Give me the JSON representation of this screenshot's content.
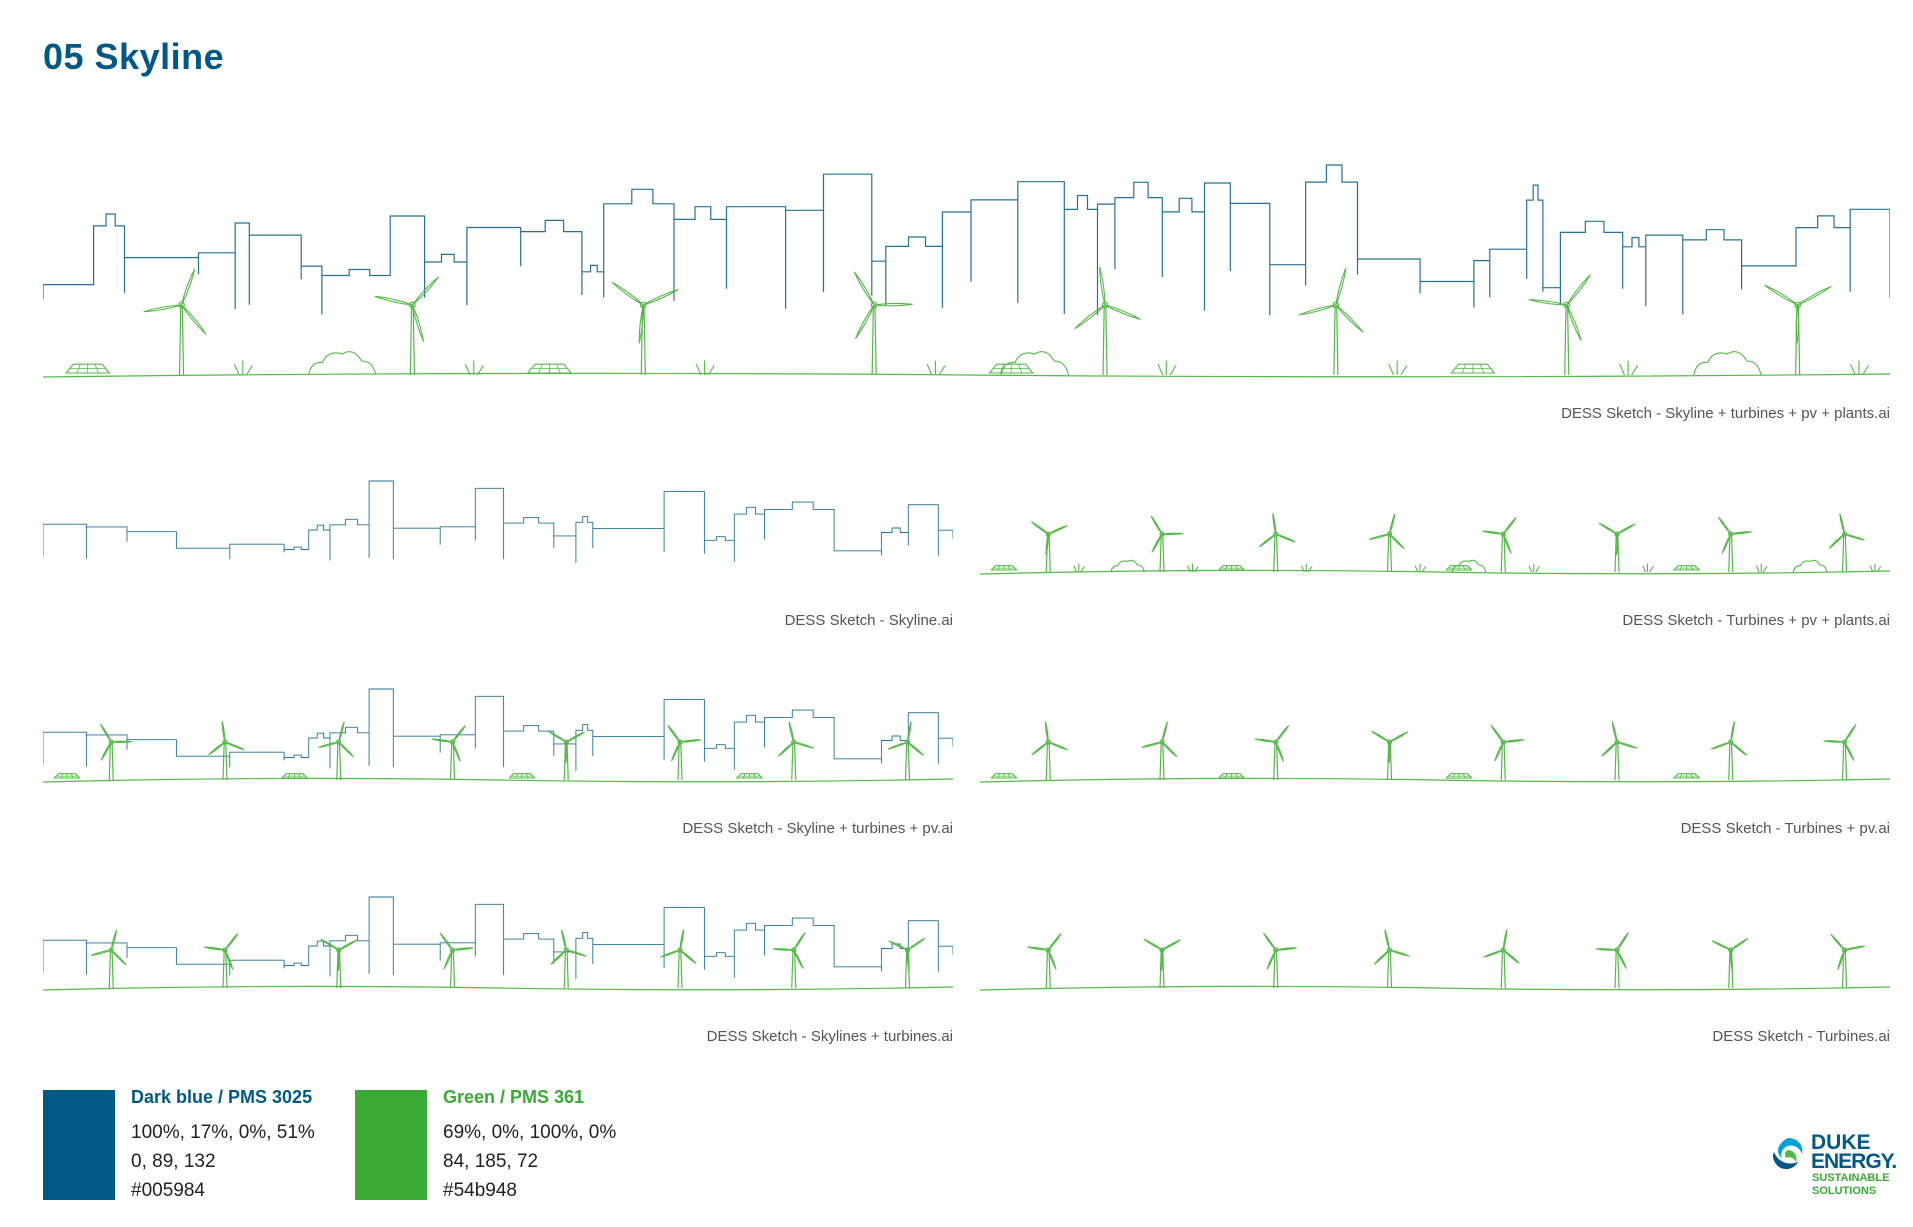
{
  "page_title": "05 Skyline",
  "colors": {
    "blue": "#005984",
    "green": "#54b948"
  },
  "sketches": [
    {
      "id": "main",
      "caption": "DESS Sketch - Skyline + turbines + pv + plants.ai",
      "skyline": true,
      "turbines": true,
      "pv": true,
      "plants": true
    },
    {
      "id": "skyline",
      "caption": "DESS Sketch - Skyline.ai",
      "skyline": true,
      "turbines": false,
      "pv": false,
      "plants": false
    },
    {
      "id": "turbines-pv-plants",
      "caption": "DESS Sketch - Turbines + pv + plants.ai",
      "skyline": false,
      "turbines": true,
      "pv": true,
      "plants": true
    },
    {
      "id": "skyline-turbines-pv",
      "caption": "DESS Sketch - Skyline + turbines + pv.ai",
      "skyline": true,
      "turbines": true,
      "pv": true,
      "plants": false
    },
    {
      "id": "turbines-pv",
      "caption": "DESS Sketch - Turbines + pv.ai",
      "skyline": false,
      "turbines": true,
      "pv": true,
      "plants": false
    },
    {
      "id": "skylines-turbines",
      "caption": "DESS Sketch - Skylines + turbines.ai",
      "skyline": true,
      "turbines": true,
      "pv": false,
      "plants": false
    },
    {
      "id": "turbines",
      "caption": "DESS Sketch - Turbines.ai",
      "skyline": false,
      "turbines": true,
      "pv": false,
      "plants": false
    }
  ],
  "swatches": [
    {
      "title": "Dark blue / PMS 3025",
      "cmyk": "100%, 17%, 0%, 51%",
      "rgb": "0, 89, 132",
      "hex": "#005984",
      "color": "#005984"
    },
    {
      "title": "Green / PMS 361",
      "cmyk": "69%, 0%, 100%, 0%",
      "rgb": "84, 185, 72",
      "hex": "#54b948",
      "color": "#54b948"
    }
  ],
  "logo": {
    "line1": "DUKE",
    "line2": "ENERGY.",
    "line3": "SUSTAINABLE",
    "line4": "SOLUTIONS",
    "icon": "duke-energy-logo-icon"
  }
}
